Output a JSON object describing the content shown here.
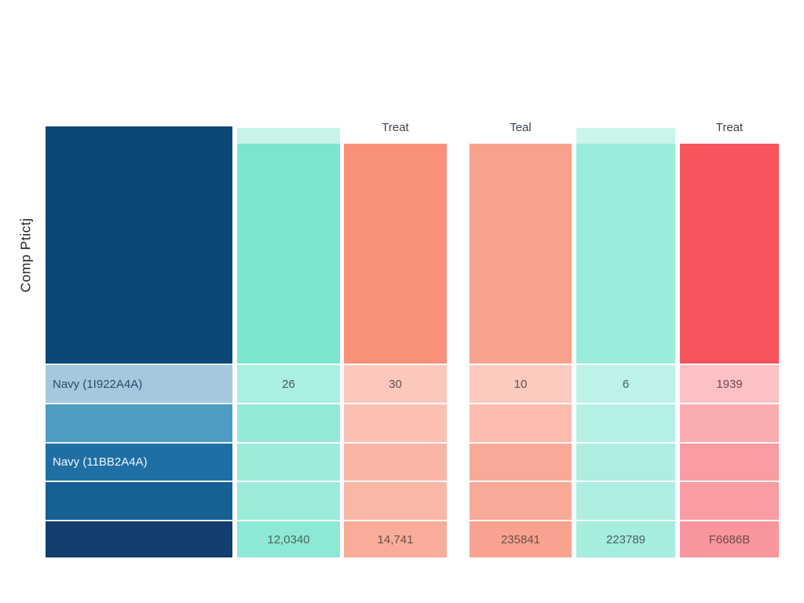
{
  "canvas": {
    "background": "#ffffff"
  },
  "y_axis_label": "Comp Ptictj",
  "chart_data": {
    "type": "table",
    "title": "",
    "ylabel": "Comp Ptictj",
    "column_headers": [
      "",
      "",
      "Treat",
      "Teal",
      "",
      "Treat"
    ],
    "top_row_values": [
      "Navy (1I922A4A)",
      "26",
      "30",
      "10",
      "6",
      "1939"
    ],
    "mid_row_labels": [
      "Navy (11BB2A4A)",
      "",
      "",
      "",
      "",
      ""
    ],
    "bottom_row_values": [
      "",
      "12,0340",
      "14,741",
      "235841",
      "223789",
      "F6686B"
    ],
    "palette": [
      "#0d4777",
      "#7ce5cf",
      "#f9917a",
      "#f8a18c",
      "#99ecdb",
      "#f7545d"
    ]
  },
  "columns": [
    {
      "name": "navy",
      "header": "",
      "cap_color": null,
      "main_color": "#0d4777",
      "rows": [
        {
          "text": "Navy (1I922A4A)",
          "color": "#a4c9de",
          "text_color": "#28486b",
          "align": "left"
        },
        {
          "text": "",
          "color": "#4f9cc3"
        },
        {
          "text": "Navy (11BB2A4A)",
          "color": "#1f6fa4",
          "text_color": "#f0f5fa",
          "align": "left"
        },
        {
          "text": "",
          "color": "#156095"
        },
        {
          "text": "",
          "color": "#123f6d"
        }
      ]
    },
    {
      "name": "teal-mint",
      "header": "",
      "cap_color": "#c8f4ea",
      "main_color": "#7ce5cf",
      "rows": [
        {
          "text": "26",
          "color": "#aaefdf",
          "text_color": "#445c59"
        },
        {
          "text": "",
          "color": "#93ead7"
        },
        {
          "text": "",
          "color": "#9cecda"
        },
        {
          "text": "",
          "color": "#9cecda"
        },
        {
          "text": "12,0340",
          "color": "#8de9d5",
          "text_color": "#4b625f"
        }
      ]
    },
    {
      "name": "coral",
      "header": "Treat",
      "cap_color": null,
      "main_color": "#f9917a",
      "rows": [
        {
          "text": "30",
          "color": "#fcc8bc",
          "text_color": "#5f514e"
        },
        {
          "text": "",
          "color": "#fbc0b2"
        },
        {
          "text": "",
          "color": "#fab5a4"
        },
        {
          "text": "",
          "color": "#fab7a6"
        },
        {
          "text": "14,741",
          "color": "#f9ac99",
          "text_color": "#66504a"
        }
      ]
    },
    {
      "name": "salmon",
      "header": "Teal",
      "cap_color": null,
      "main_color": "#f8a18c",
      "rows": [
        {
          "text": "10",
          "color": "#fccabe",
          "text_color": "#5f514e"
        },
        {
          "text": "",
          "color": "#fbbcad"
        },
        {
          "text": "",
          "color": "#f9a997"
        },
        {
          "text": "",
          "color": "#f9a997"
        },
        {
          "text": "235841",
          "color": "#f8a28f",
          "text_color": "#66504a"
        }
      ]
    },
    {
      "name": "teal-light",
      "header": "",
      "cap_color": "#c9f5ec",
      "main_color": "#99ecdb",
      "rows": [
        {
          "text": "6",
          "color": "#bdf2e9",
          "text_color": "#445c59"
        },
        {
          "text": "",
          "color": "#b4f0e5"
        },
        {
          "text": "",
          "color": "#aeeee2"
        },
        {
          "text": "",
          "color": "#aeeee2"
        },
        {
          "text": "223789",
          "color": "#a5eddf",
          "text_color": "#4b625f"
        }
      ]
    },
    {
      "name": "red",
      "header": "Treat",
      "cap_color": null,
      "main_color": "#f7545d",
      "rows": [
        {
          "text": "1939",
          "color": "#fcc1c5",
          "text_color": "#6b4a4e"
        },
        {
          "text": "",
          "color": "#fbacb1"
        },
        {
          "text": "",
          "color": "#fa9da3"
        },
        {
          "text": "",
          "color": "#fa9da3"
        },
        {
          "text": "F6686B",
          "color": "#f9959c",
          "text_color": "#6b4a4e"
        }
      ]
    }
  ]
}
